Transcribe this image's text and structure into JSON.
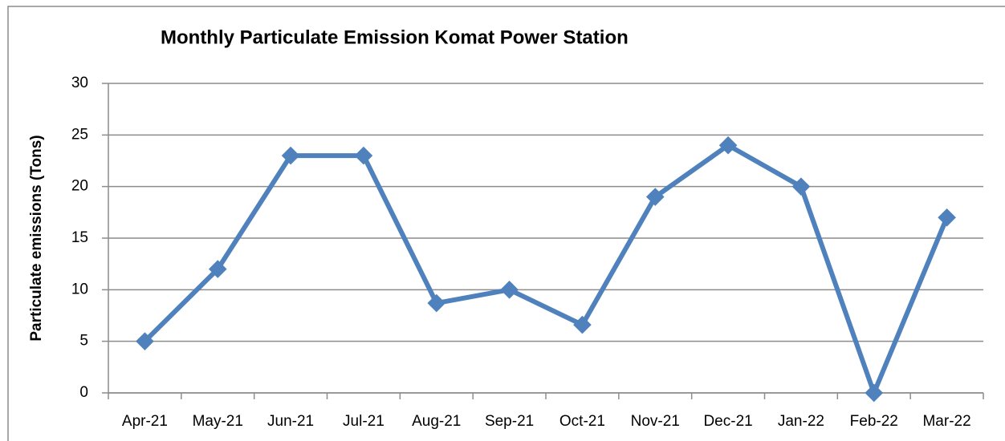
{
  "chart_data": {
    "type": "line",
    "title": "Monthly Particulate Emission Komat Power Station",
    "y_label": "Particulate emissions (Tons)",
    "categories": [
      "Apr-21",
      "May-21",
      "Jun-21",
      "Jul-21",
      "Aug-21",
      "Sep-21",
      "Oct-21",
      "Nov-21",
      "Dec-21",
      "Jan-22",
      "Feb-22",
      "Mar-22"
    ],
    "series": [
      {
        "name": "Particulate emissions",
        "color": "#4f81bd",
        "values": [
          5,
          12,
          23,
          23,
          8.7,
          10,
          6.6,
          19,
          24,
          20,
          0,
          17
        ]
      }
    ],
    "ylim": [
      0,
      30
    ],
    "yticks": [
      0,
      5,
      10,
      15,
      20,
      25,
      30
    ],
    "grid": true
  }
}
